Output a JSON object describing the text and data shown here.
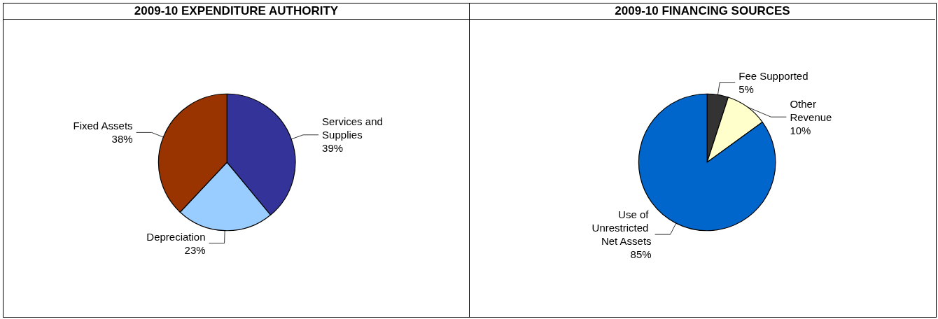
{
  "chart_data": [
    {
      "type": "pie",
      "title": "2009-10 EXPENDITURE AUTHORITY",
      "categories": [
        "Services and Supplies",
        "Depreciation",
        "Fixed Assets"
      ],
      "values": [
        39,
        23,
        38
      ],
      "colors": [
        "#333399",
        "#99ccff",
        "#993300"
      ],
      "value_labels": [
        "39%",
        "23%",
        "38%"
      ]
    },
    {
      "type": "pie",
      "title": "2009-10 FINANCING SOURCES",
      "categories": [
        "Fee Supported",
        "Other Revenue",
        "Use of Unrestricted Net Assets"
      ],
      "values": [
        5,
        10,
        85
      ],
      "colors": [
        "#333333",
        "#ffffcc",
        "#0066cc"
      ],
      "value_labels": [
        "5%",
        "10%",
        "85%"
      ]
    }
  ]
}
